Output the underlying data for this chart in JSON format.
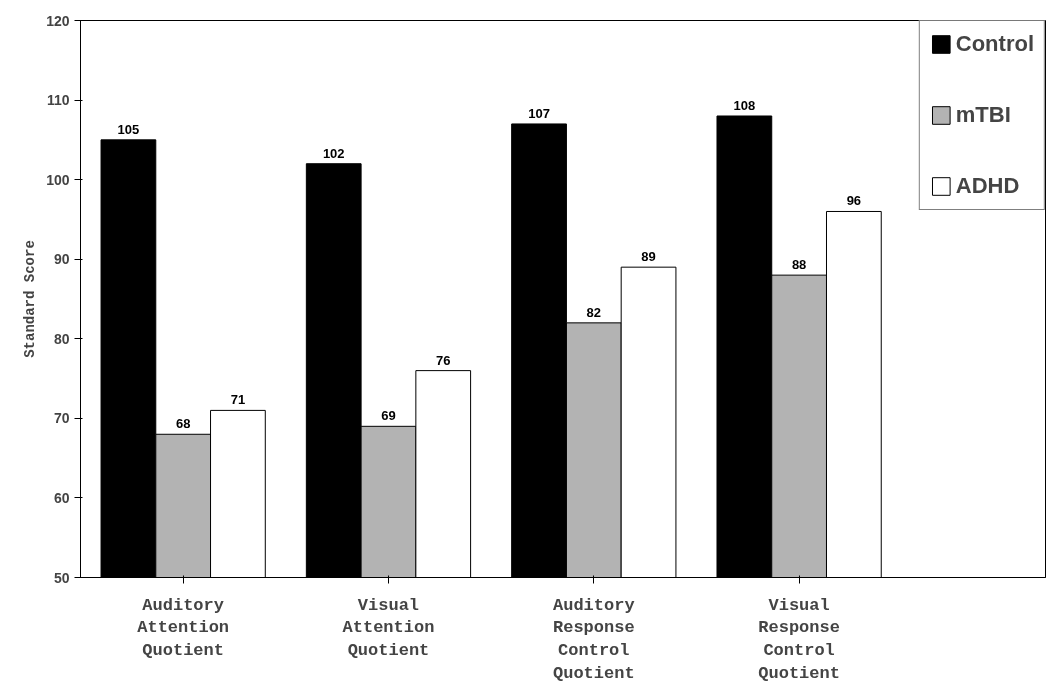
{
  "chart_data": {
    "type": "bar",
    "ylabel": "Standard Score",
    "categories": [
      "Auditory Attention Quotient",
      "Visual Attention Quotient",
      "Auditory Response Control Quotient",
      "Visual Response Control Quotient"
    ],
    "series": [
      {
        "name": "Control",
        "color": "#000000",
        "values": [
          105,
          102,
          107,
          108
        ]
      },
      {
        "name": "mTBI",
        "color": "#b3b3b3",
        "values": [
          68,
          69,
          82,
          88
        ]
      },
      {
        "name": "ADHD",
        "color": "#ffffff",
        "values": [
          71,
          76,
          89,
          96
        ]
      }
    ],
    "ylim": [
      50,
      120
    ],
    "yticks": [
      50,
      60,
      70,
      80,
      90,
      100,
      110,
      120
    ],
    "grid": false,
    "legend": "top right",
    "data_labels": true
  }
}
